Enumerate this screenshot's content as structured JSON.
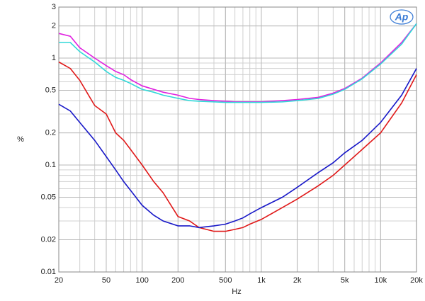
{
  "chart_data": {
    "type": "line",
    "logo": "Ap",
    "x_label": "Hz",
    "y_label": "%",
    "x": [
      20,
      25,
      30,
      40,
      50,
      60,
      70,
      80,
      100,
      125,
      150,
      200,
      250,
      300,
      400,
      500,
      600,
      700,
      800,
      1000,
      1500,
      2000,
      3000,
      4000,
      5000,
      7000,
      10000,
      15000,
      20000
    ],
    "series": [
      {
        "color": "#e020e0",
        "values": [
          1.7,
          1.6,
          1.25,
          1.0,
          0.85,
          0.75,
          0.7,
          0.63,
          0.55,
          0.51,
          0.48,
          0.45,
          0.42,
          0.41,
          0.4,
          0.395,
          0.39,
          0.39,
          0.39,
          0.39,
          0.4,
          0.41,
          0.43,
          0.47,
          0.52,
          0.65,
          0.9,
          1.4,
          2.1
        ]
      },
      {
        "color": "#30d8d8",
        "values": [
          1.4,
          1.4,
          1.15,
          0.92,
          0.75,
          0.66,
          0.62,
          0.58,
          0.51,
          0.48,
          0.45,
          0.42,
          0.4,
          0.395,
          0.39,
          0.385,
          0.385,
          0.385,
          0.385,
          0.385,
          0.39,
          0.4,
          0.42,
          0.46,
          0.51,
          0.64,
          0.88,
          1.35,
          2.1
        ]
      },
      {
        "color": "#e01818",
        "values": [
          0.92,
          0.8,
          0.62,
          0.36,
          0.3,
          0.2,
          0.17,
          0.14,
          0.1,
          0.07,
          0.055,
          0.033,
          0.03,
          0.026,
          0.024,
          0.024,
          0.025,
          0.026,
          0.028,
          0.031,
          0.04,
          0.048,
          0.064,
          0.08,
          0.1,
          0.14,
          0.2,
          0.38,
          0.7
        ]
      },
      {
        "color": "#1818c8",
        "values": [
          0.37,
          0.32,
          0.25,
          0.17,
          0.12,
          0.09,
          0.07,
          0.058,
          0.042,
          0.034,
          0.03,
          0.027,
          0.027,
          0.026,
          0.027,
          0.028,
          0.03,
          0.032,
          0.035,
          0.04,
          0.05,
          0.062,
          0.085,
          0.105,
          0.13,
          0.17,
          0.25,
          0.45,
          0.8
        ]
      }
    ],
    "xlim": [
      20,
      20000
    ],
    "ylim": [
      0.01,
      3
    ],
    "x_log": true,
    "y_log": true,
    "grid": true,
    "minor_grid": true,
    "xticks": [
      20,
      50,
      100,
      200,
      500,
      {
        "value": 1000,
        "label": "1k"
      },
      {
        "value": 2000,
        "label": "2k"
      },
      {
        "value": 5000,
        "label": "5k"
      },
      {
        "value": 10000,
        "label": "10k"
      },
      {
        "value": 20000,
        "label": "20k"
      }
    ],
    "yticks": [
      0.01,
      0.02,
      0.05,
      0.1,
      0.2,
      0.5,
      1,
      2,
      3
    ]
  }
}
